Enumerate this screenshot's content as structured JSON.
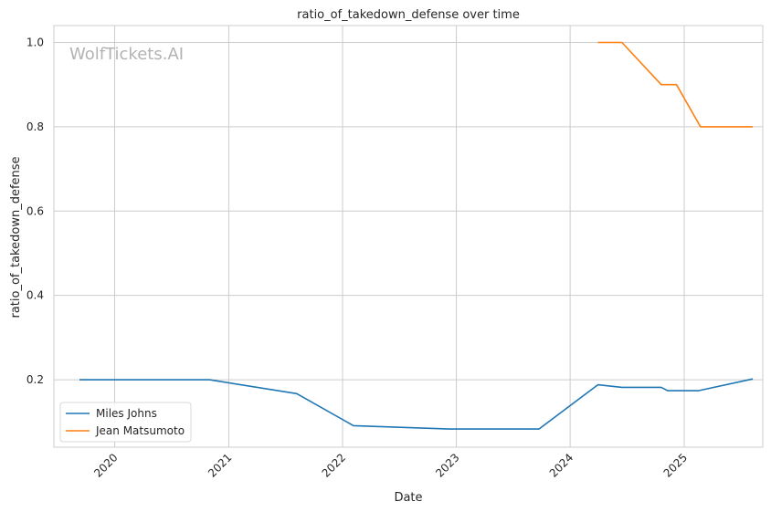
{
  "chart_data": {
    "type": "line",
    "title": "ratio_of_takedown_defense over time",
    "xlabel": "Date",
    "ylabel": "ratio_of_takedown_defense",
    "watermark": "WolfTickets.AI",
    "x_ticks": [
      "2020",
      "2021",
      "2022",
      "2023",
      "2024",
      "2025"
    ],
    "y_ticks": [
      "0.2",
      "0.4",
      "0.6",
      "0.8",
      "1.0"
    ],
    "xlim": [
      "2019-06-20",
      "2025-09-10"
    ],
    "ylim": [
      0.04,
      1.04
    ],
    "grid": true,
    "legend_position": "lower-left",
    "series": [
      {
        "name": "Miles Johns",
        "color": "#1f77b4",
        "points": [
          [
            "2019-09-10",
            0.2
          ],
          [
            "2020-10-31",
            0.2
          ],
          [
            "2021-08-07",
            0.167
          ],
          [
            "2022-02-05",
            0.091
          ],
          [
            "2022-12-10",
            0.083
          ],
          [
            "2023-09-23",
            0.083
          ],
          [
            "2024-03-30",
            0.188
          ],
          [
            "2024-06-15",
            0.182
          ],
          [
            "2024-10-19",
            0.182
          ],
          [
            "2024-11-09",
            0.174
          ],
          [
            "2025-02-15",
            0.174
          ],
          [
            "2025-08-09",
            0.202
          ]
        ]
      },
      {
        "name": "Jean Matsumoto",
        "color": "#ff7f0e",
        "points": [
          [
            "2024-03-30",
            1.0
          ],
          [
            "2024-06-15",
            1.0
          ],
          [
            "2024-10-19",
            0.9
          ],
          [
            "2024-12-07",
            0.9
          ],
          [
            "2025-02-22",
            0.8
          ],
          [
            "2025-08-09",
            0.8
          ]
        ]
      }
    ]
  }
}
